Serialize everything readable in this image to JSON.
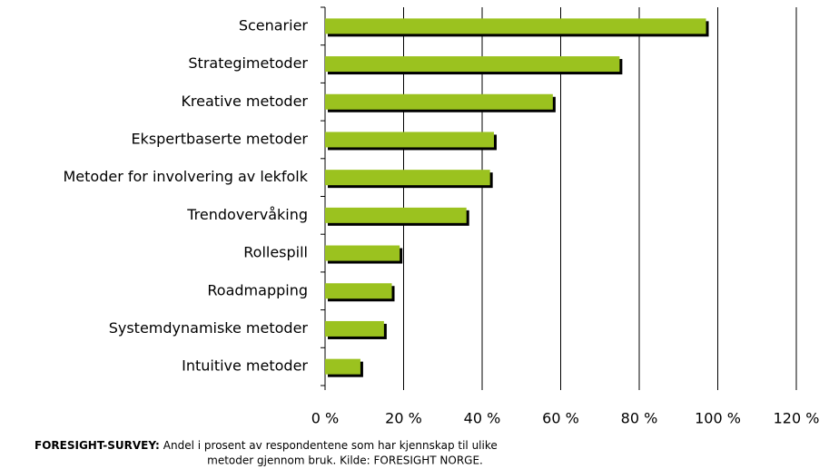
{
  "chart_data": {
    "type": "barh",
    "categories": [
      "Scenarier",
      "Strategimetoder",
      "Kreative metoder",
      "Ekspertbaserte metoder",
      "Metoder for involvering av lekfolk",
      "Trendovervåking",
      "Rollespill",
      "Roadmapping",
      "Systemdynamiske metoder",
      "Intuitive metoder"
    ],
    "values": [
      97,
      75,
      58,
      43,
      42,
      36,
      19,
      17,
      15,
      9
    ],
    "color": "#9bc21f",
    "shadow_color": "#000000",
    "xlim": [
      0,
      120
    ],
    "xticks": [
      {
        "value": 0,
        "label": "0 %"
      },
      {
        "value": 20,
        "label": "20 %"
      },
      {
        "value": 40,
        "label": "40 %"
      },
      {
        "value": 60,
        "label": "60 %"
      },
      {
        "value": 80,
        "label": "80 %"
      },
      {
        "value": 100,
        "label": "100 %"
      },
      {
        "value": 120,
        "label": "120 %"
      }
    ],
    "grid": true,
    "caption_lead": "FORESIGHT-SURVEY:",
    "caption_lines": [
      "Andel i prosent av respondentene som har kjennskap til ulike",
      "metoder gjennom bruk. Kilde: FORESIGHT NORGE."
    ]
  }
}
